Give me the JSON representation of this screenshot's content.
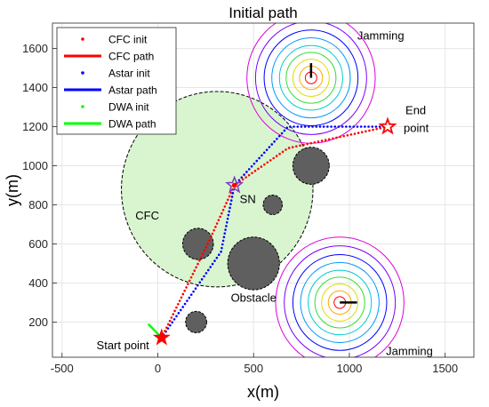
{
  "chart_data": {
    "type": "scatter",
    "title": "Initial path",
    "xlabel": "x(m)",
    "ylabel": "y(m)",
    "xlim": [
      -550,
      1650
    ],
    "ylim": [
      20,
      1730
    ],
    "xticks": [
      -500,
      0,
      500,
      1000,
      1500
    ],
    "yticks": [
      200,
      400,
      600,
      800,
      1000,
      1200,
      1400,
      1600
    ],
    "legend": {
      "position": "top-left",
      "entries": [
        {
          "label": "CFC init",
          "color": "#ff0000",
          "style": "dots"
        },
        {
          "label": "CFC path",
          "color": "#ff0000",
          "style": "line"
        },
        {
          "label": "Astar init",
          "color": "#0000ff",
          "style": "dots"
        },
        {
          "label": "Astar path",
          "color": "#0000ff",
          "style": "line"
        },
        {
          "label": "DWA init",
          "color": "#00ff00",
          "style": "dots"
        },
        {
          "label": "DWA path",
          "color": "#00ff00",
          "style": "line"
        }
      ]
    },
    "cfc_region": {
      "label": "CFC",
      "center": [
        310,
        880
      ],
      "radius": 500,
      "color": "#d9f5d0"
    },
    "obstacles": [
      {
        "center": [
          200,
          200
        ],
        "radius": 55
      },
      {
        "center": [
          210,
          600
        ],
        "radius": 80
      },
      {
        "center": [
          500,
          500
        ],
        "radius": 135
      },
      {
        "center": [
          600,
          800
        ],
        "radius": 50
      },
      {
        "center": [
          800,
          1000
        ],
        "radius": 95
      }
    ],
    "obstacle_label": {
      "text": "Obstacle",
      "x": 500,
      "y": 350
    },
    "jamming": [
      {
        "label": "Jamming",
        "center": [
          800,
          1450
        ],
        "radii": [
          30,
          60,
          95,
          130,
          165,
          205,
          245,
          290,
          335
        ],
        "needle": [
          800,
          1525
        ]
      },
      {
        "label": "Jamming",
        "center": [
          950,
          300
        ],
        "radii": [
          30,
          60,
          95,
          130,
          165,
          205,
          245,
          290,
          335
        ],
        "needle": [
          1040,
          300
        ]
      }
    ],
    "ring_colors": [
      "#ff0000",
      "#ffaa00",
      "#dddd00",
      "#33dd33",
      "#00cccc",
      "#0099ff",
      "#0000ff",
      "#7700ff",
      "#dd00dd"
    ],
    "start": {
      "label": "Start point",
      "x": 20,
      "y": 120
    },
    "end": {
      "label": [
        "End",
        "point"
      ],
      "x": 1200,
      "y": 1200
    },
    "sn": {
      "label": "SN",
      "x": 400,
      "y": 900
    },
    "cfc_init_path": [
      [
        20,
        120
      ],
      [
        270,
        620
      ],
      [
        400,
        900
      ],
      [
        680,
        1090
      ],
      [
        1200,
        1200
      ]
    ],
    "astar_init_path": [
      [
        20,
        120
      ],
      [
        330,
        560
      ],
      [
        400,
        900
      ],
      [
        680,
        1200
      ],
      [
        1200,
        1200
      ]
    ],
    "dwa_path": [
      [
        -50,
        190
      ],
      [
        20,
        120
      ]
    ]
  }
}
